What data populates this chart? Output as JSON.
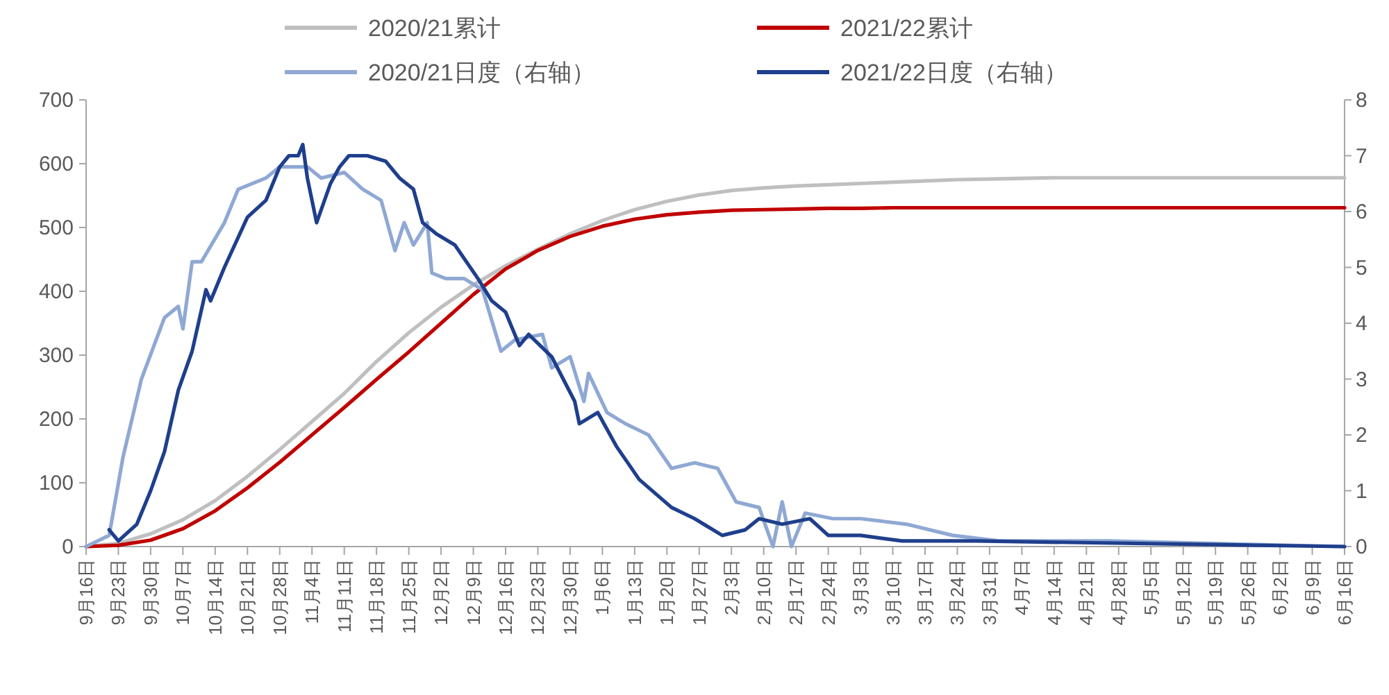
{
  "chart_data": {
    "type": "line",
    "legend": "top",
    "x": [
      "2021-09-16",
      "2021-09-23",
      "2021-09-30",
      "2021-10-07",
      "2021-10-14",
      "2021-10-21",
      "2021-10-28",
      "2021-11-04",
      "2021-11-11",
      "2021-11-18",
      "2021-11-25",
      "2021-12-02",
      "2021-12-09",
      "2021-12-16",
      "2021-12-23",
      "2021-12-30",
      "2022-01-06",
      "2022-01-13",
      "2022-01-20",
      "2022-01-27",
      "2022-02-03",
      "2022-02-10",
      "2022-02-17",
      "2022-02-24",
      "2022-03-03",
      "2022-03-10",
      "2022-03-17",
      "2022-03-24",
      "2022-03-31",
      "2022-04-07",
      "2022-04-14",
      "2022-04-21",
      "2022-04-28",
      "2022-05-05",
      "2022-05-12",
      "2022-05-19",
      "2022-05-26",
      "2022-06-02",
      "2022-06-09",
      "2022-06-16"
    ],
    "xlim": [
      "2021-09-16",
      "2022-06-16"
    ],
    "xticks": [
      {
        "value": "2021-09-16",
        "label": "9月16日"
      },
      {
        "value": "2021-09-23",
        "label": "9月23日"
      },
      {
        "value": "2021-09-30",
        "label": "9月30日"
      },
      {
        "value": "2021-10-07",
        "label": "10月7日"
      },
      {
        "value": "2021-10-14",
        "label": "10月14日"
      },
      {
        "value": "2021-10-21",
        "label": "10月21日"
      },
      {
        "value": "2021-10-28",
        "label": "10月28日"
      },
      {
        "value": "2021-11-04",
        "label": "11月4日"
      },
      {
        "value": "2021-11-11",
        "label": "11月11日"
      },
      {
        "value": "2021-11-18",
        "label": "11月18日"
      },
      {
        "value": "2021-11-25",
        "label": "11月25日"
      },
      {
        "value": "2021-12-02",
        "label": "12月2日"
      },
      {
        "value": "2021-12-09",
        "label": "12月9日"
      },
      {
        "value": "2021-12-16",
        "label": "12月16日"
      },
      {
        "value": "2021-12-23",
        "label": "12月23日"
      },
      {
        "value": "2021-12-30",
        "label": "12月30日"
      },
      {
        "value": "2022-01-06",
        "label": "1月6日"
      },
      {
        "value": "2022-01-13",
        "label": "1月13日"
      },
      {
        "value": "2022-01-20",
        "label": "1月20日"
      },
      {
        "value": "2022-01-27",
        "label": "1月27日"
      },
      {
        "value": "2022-02-03",
        "label": "2月3日"
      },
      {
        "value": "2022-02-10",
        "label": "2月10日"
      },
      {
        "value": "2022-02-17",
        "label": "2月17日"
      },
      {
        "value": "2022-02-24",
        "label": "2月24日"
      },
      {
        "value": "2022-03-03",
        "label": "3月3日"
      },
      {
        "value": "2022-03-10",
        "label": "3月10日"
      },
      {
        "value": "2022-03-17",
        "label": "3月17日"
      },
      {
        "value": "2022-03-24",
        "label": "3月24日"
      },
      {
        "value": "2022-03-31",
        "label": "3月31日"
      },
      {
        "value": "2022-04-07",
        "label": "4月7日"
      },
      {
        "value": "2022-04-14",
        "label": "4月14日"
      },
      {
        "value": "2022-04-21",
        "label": "4月21日"
      },
      {
        "value": "2022-04-28",
        "label": "4月28日"
      },
      {
        "value": "2022-05-05",
        "label": "5月5日"
      },
      {
        "value": "2022-05-12",
        "label": "5月12日"
      },
      {
        "value": "2022-05-19",
        "label": "5月19日"
      },
      {
        "value": "2022-05-26",
        "label": "5月26日"
      },
      {
        "value": "2022-06-02",
        "label": "6月2日"
      },
      {
        "value": "2022-06-09",
        "label": "6月9日"
      },
      {
        "value": "2022-06-16",
        "label": "6月16日"
      }
    ],
    "ylim": [
      0,
      700
    ],
    "yticks": [
      0,
      100,
      200,
      300,
      400,
      500,
      600,
      700
    ],
    "y2lim": [
      0,
      8
    ],
    "y2ticks": [
      0,
      1,
      2,
      3,
      4,
      5,
      6,
      7,
      8
    ],
    "series": [
      {
        "name": "2020/21累计",
        "color": "#bfbfbf",
        "values": [
          0,
          5,
          20,
          42,
          72,
          110,
          152,
          196,
          240,
          290,
          335,
          375,
          410,
          440,
          466,
          490,
          511,
          528,
          541,
          551,
          558,
          562,
          565,
          567,
          569,
          571,
          573,
          575,
          576,
          577,
          578,
          578,
          578,
          578,
          578,
          578,
          578,
          578,
          578,
          578
        ]
      },
      {
        "name": "2021/22累计",
        "color": "#c00000",
        "values": [
          0,
          2,
          10,
          28,
          56,
          92,
          132,
          175,
          218,
          262,
          305,
          350,
          395,
          435,
          464,
          486,
          502,
          513,
          520,
          524,
          527,
          528,
          529,
          530,
          530,
          531,
          531,
          531,
          531,
          531,
          531,
          531,
          531,
          531,
          531,
          531,
          531,
          531,
          531,
          531
        ]
      },
      {
        "name": "2020/21日度（右轴）",
        "color": "#8fa8d4",
        "axis": "y2",
        "x": [
          "2021-09-16",
          "2021-09-21",
          "2021-09-24",
          "2021-09-28",
          "2021-10-03",
          "2021-10-06",
          "2021-10-07",
          "2021-10-09",
          "2021-10-11",
          "2021-10-16",
          "2021-10-19",
          "2021-10-25",
          "2021-10-28",
          "2021-11-03",
          "2021-11-06",
          "2021-11-11",
          "2021-11-15",
          "2021-11-19",
          "2021-11-22",
          "2021-11-24",
          "2021-11-26",
          "2021-11-29",
          "2021-11-30",
          "2021-12-03",
          "2021-12-07",
          "2021-12-11",
          "2021-12-15",
          "2021-12-18",
          "2021-12-24",
          "2021-12-26",
          "2021-12-30",
          "2022-01-02",
          "2022-01-03",
          "2022-01-07",
          "2022-01-11",
          "2022-01-16",
          "2022-01-21",
          "2022-01-26",
          "2022-01-31",
          "2022-02-04",
          "2022-02-09",
          "2022-02-12",
          "2022-02-14",
          "2022-02-16",
          "2022-02-19",
          "2022-02-25",
          "2022-03-03",
          "2022-03-13",
          "2022-03-23",
          "2022-04-02",
          "2022-04-26",
          "2022-06-16"
        ],
        "values": [
          0,
          0.2,
          1.6,
          3.0,
          4.1,
          4.3,
          3.9,
          5.1,
          5.1,
          5.8,
          6.4,
          6.6,
          6.8,
          6.8,
          6.6,
          6.7,
          6.4,
          6.2,
          5.3,
          5.8,
          5.4,
          5.8,
          4.9,
          4.8,
          4.8,
          4.6,
          3.5,
          3.7,
          3.8,
          3.2,
          3.4,
          2.6,
          3.1,
          2.4,
          2.2,
          2.0,
          1.4,
          1.5,
          1.4,
          0.8,
          0.7,
          0,
          0.8,
          0,
          0.6,
          0.5,
          0.5,
          0.4,
          0.2,
          0.1,
          0.1,
          0
        ]
      },
      {
        "name": "2021/22日度（右轴）",
        "color": "#1f3f8c",
        "axis": "y2",
        "x": [
          "2021-09-21",
          "2021-09-23",
          "2021-09-27",
          "2021-09-30",
          "2021-10-03",
          "2021-10-06",
          "2021-10-09",
          "2021-10-12",
          "2021-10-13",
          "2021-10-16",
          "2021-10-21",
          "2021-10-25",
          "2021-10-28",
          "2021-10-30",
          "2021-11-01",
          "2021-11-02",
          "2021-11-03",
          "2021-11-05",
          "2021-11-08",
          "2021-11-10",
          "2021-11-12",
          "2021-11-16",
          "2021-11-20",
          "2021-11-23",
          "2021-11-26",
          "2021-11-28",
          "2021-12-01",
          "2021-12-05",
          "2021-12-10",
          "2021-12-13",
          "2021-12-16",
          "2021-12-19",
          "2021-12-21",
          "2021-12-26",
          "2021-12-31",
          "2022-01-01",
          "2022-01-05",
          "2022-01-09",
          "2022-01-14",
          "2022-01-21",
          "2022-01-26",
          "2022-02-01",
          "2022-02-06",
          "2022-02-09",
          "2022-02-14",
          "2022-02-20",
          "2022-02-24",
          "2022-03-03",
          "2022-03-12",
          "2022-03-28",
          "2022-06-16"
        ],
        "values": [
          0.3,
          0.1,
          0.4,
          1.0,
          1.7,
          2.8,
          3.5,
          4.6,
          4.4,
          5.0,
          5.9,
          6.2,
          6.8,
          7.0,
          7.0,
          7.2,
          6.6,
          5.8,
          6.5,
          6.8,
          7.0,
          7.0,
          6.9,
          6.6,
          6.4,
          5.8,
          5.6,
          5.4,
          4.8,
          4.4,
          4.2,
          3.6,
          3.8,
          3.4,
          2.6,
          2.2,
          2.4,
          1.8,
          1.2,
          0.7,
          0.5,
          0.2,
          0.3,
          0.5,
          0.4,
          0.5,
          0.2,
          0.2,
          0.1,
          0.1,
          0
        ]
      }
    ]
  }
}
